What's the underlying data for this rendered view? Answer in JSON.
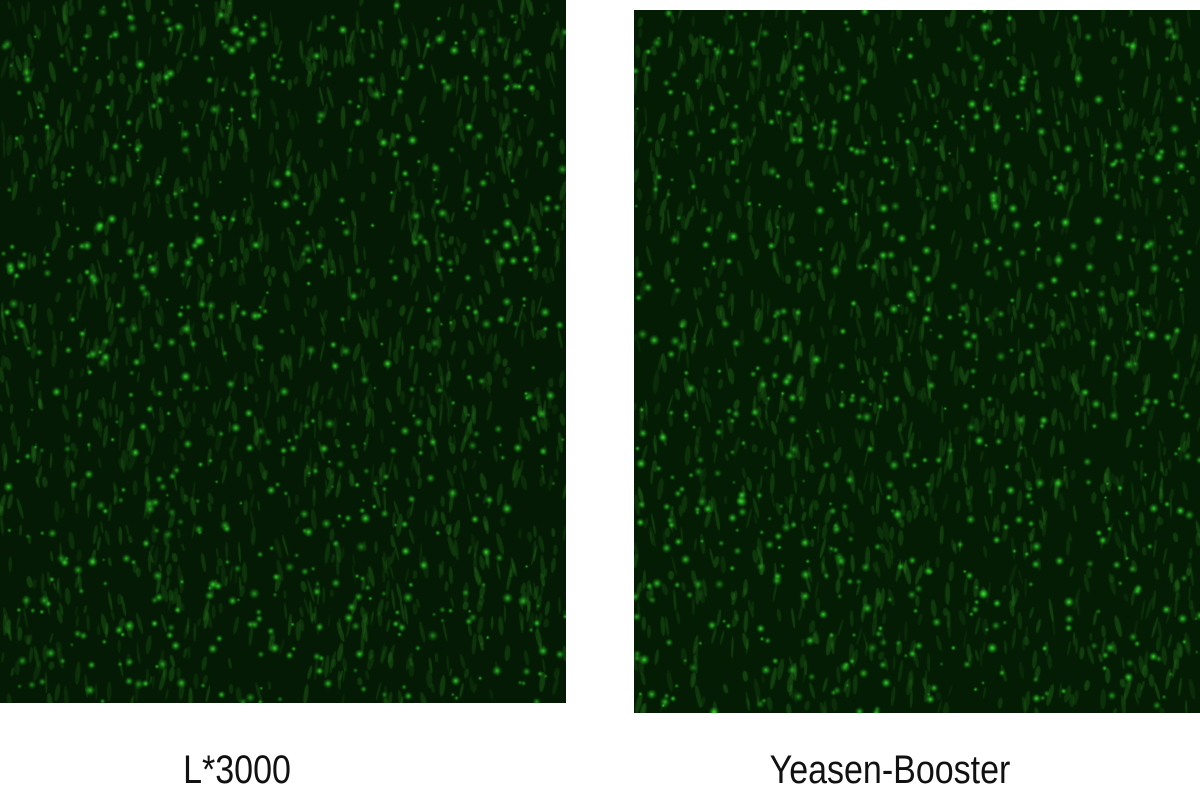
{
  "panels": [
    {
      "label": "L*3000",
      "background_color": "#041a04",
      "cell_color": "#22e022"
    },
    {
      "label": "Yeasen-Booster",
      "background_color": "#041c04",
      "cell_color": "#22e022"
    }
  ]
}
